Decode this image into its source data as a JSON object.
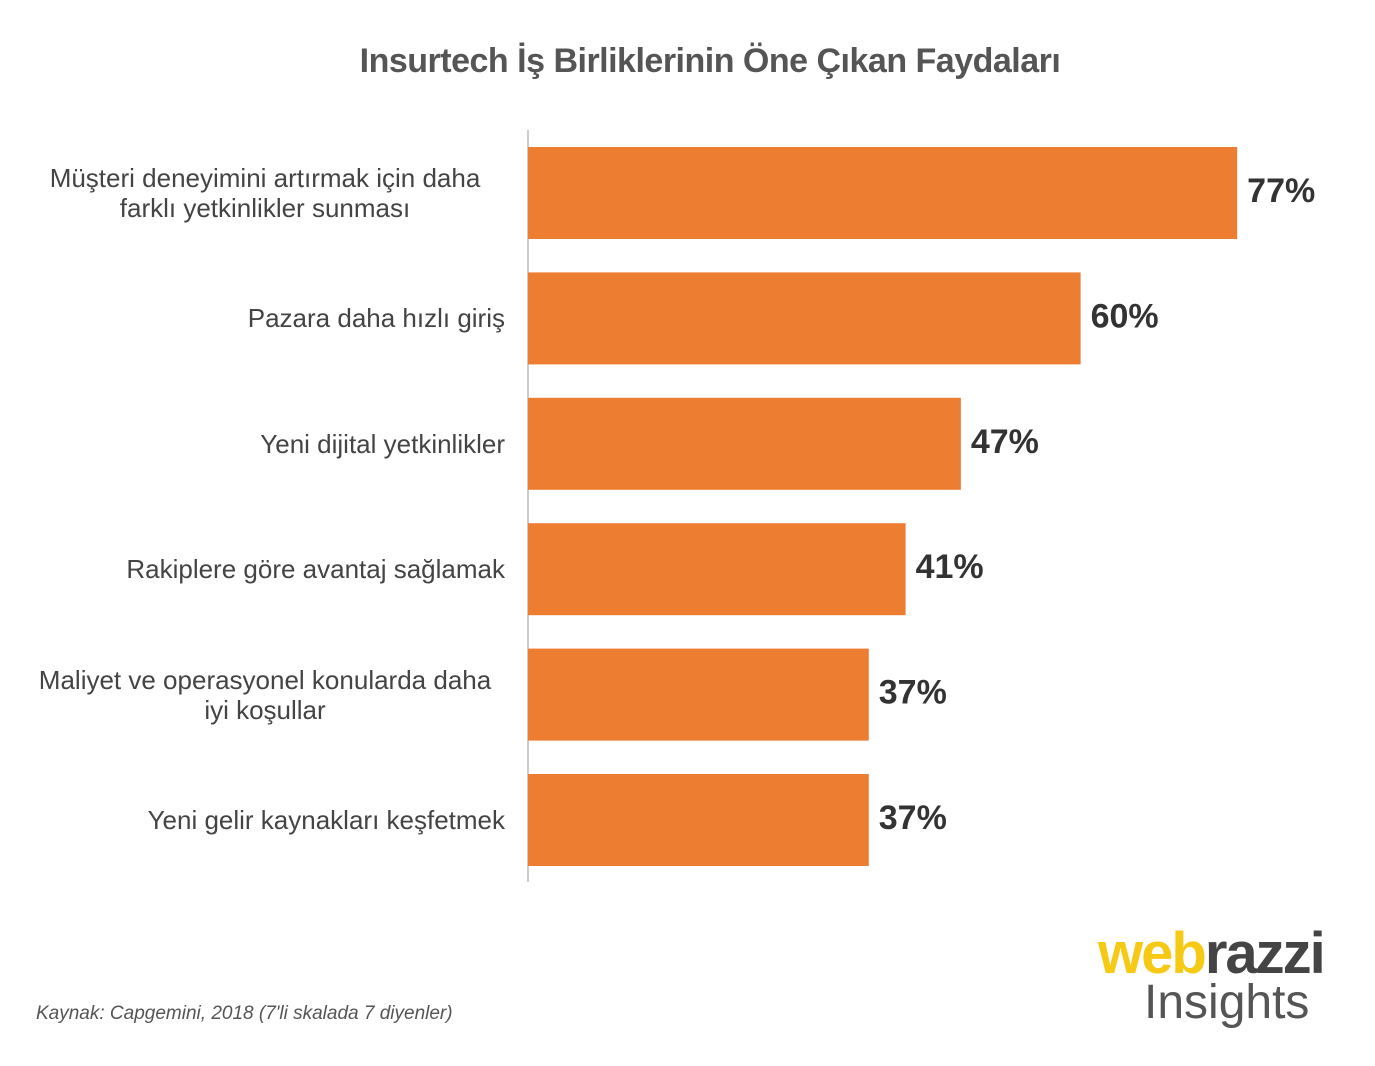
{
  "chart_data": {
    "type": "bar",
    "orientation": "horizontal",
    "title": "Insurtech İş Birliklerinin Öne Çıkan Faydaları",
    "categories": [
      "Müşteri deneyimini artırmak için daha farklı yetkinlikler sunması",
      "Pazara daha hızlı giriş",
      "Yeni dijital yetkinlikler",
      "Rakiplere göre avantaj sağlamak",
      "Maliyet ve operasyonel konularda daha iyi koşullar",
      "Yeni gelir kaynakları keşfetmek"
    ],
    "values": [
      77,
      60,
      47,
      41,
      37,
      37
    ],
    "value_labels": [
      "77%",
      "60%",
      "47%",
      "41%",
      "37%",
      "37%"
    ],
    "color": "#ed7d31",
    "xlim": [
      0,
      100
    ]
  },
  "footer": {
    "source": "Kaynak: Capgemini, 2018  (7'li skalada 7 diyenler)",
    "logo": {
      "brand_part1": "web",
      "brand_part2": "razzi",
      "subtitle": "Insights"
    }
  }
}
